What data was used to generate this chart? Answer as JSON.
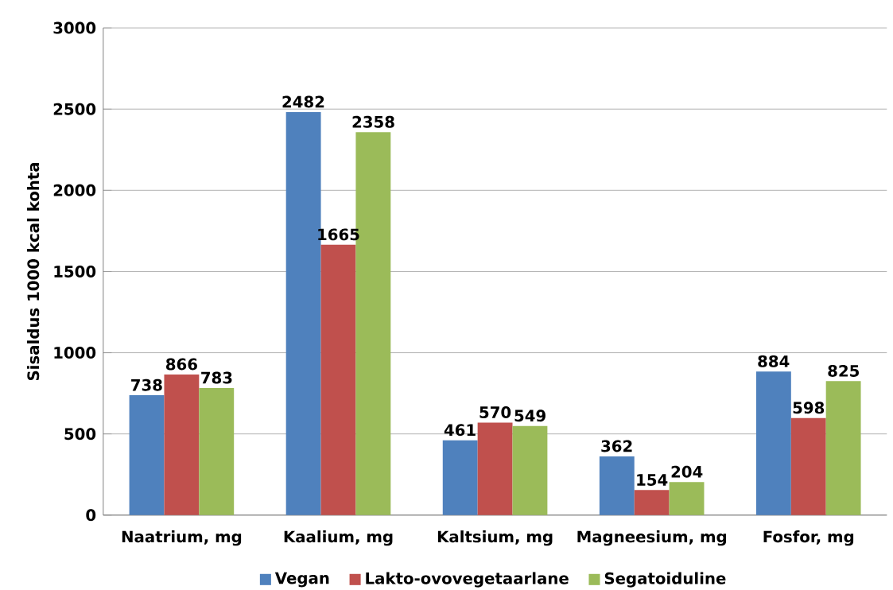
{
  "chart_data": {
    "type": "bar",
    "ylabel": "Sisaldus 1000 kcal kohta",
    "categories": [
      "Naatrium, mg",
      "Kaalium, mg",
      "Kaltsium, mg",
      "Magneesium, mg",
      "Fosfor, mg"
    ],
    "series": [
      {
        "name": "Vegan",
        "color": "#4f81bd",
        "values": [
          738,
          2482,
          461,
          362,
          884
        ]
      },
      {
        "name": "Lakto-ovovegetaarlane",
        "color": "#c0504d",
        "values": [
          866,
          1665,
          570,
          154,
          598
        ]
      },
      {
        "name": "Segatoiduline",
        "color": "#9bbb59",
        "values": [
          783,
          2358,
          549,
          204,
          825
        ]
      }
    ],
    "ylim": [
      0,
      3000
    ],
    "yticks": [
      0,
      500,
      1000,
      1500,
      2000,
      2500,
      3000
    ],
    "grid": "y",
    "legend": "bottom",
    "data_labels": true
  }
}
